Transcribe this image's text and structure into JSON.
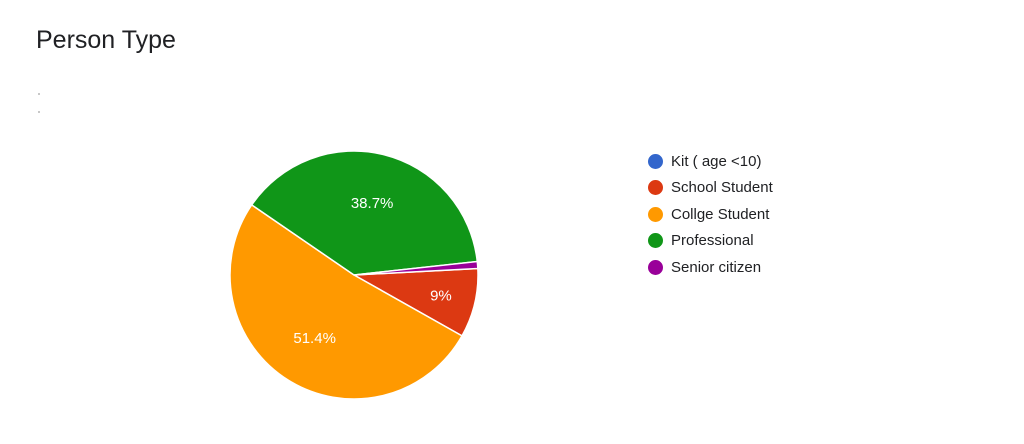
{
  "chart_data": {
    "type": "pie",
    "title": "Person Type",
    "slices": [
      {
        "label": "Kit ( age <10)",
        "value": 0,
        "color": "#3366cc",
        "display": ""
      },
      {
        "label": "School Student",
        "value": 9.0,
        "color": "#dc3912",
        "display": "9%"
      },
      {
        "label": "Collge Student",
        "value": 51.4,
        "color": "#ff9900",
        "display": "51.4%"
      },
      {
        "label": "Professional",
        "value": 38.7,
        "color": "#109618",
        "display": "38.7%"
      },
      {
        "label": "Senior citizen",
        "value": 0.9,
        "color": "#990099",
        "display": ""
      }
    ],
    "legend_position": "right"
  }
}
